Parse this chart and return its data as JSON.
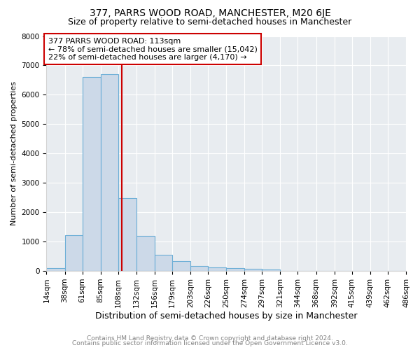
{
  "title1": "377, PARRS WOOD ROAD, MANCHESTER, M20 6JE",
  "title2": "Size of property relative to semi-detached houses in Manchester",
  "xlabel": "Distribution of semi-detached houses by size in Manchester",
  "ylabel": "Number of semi-detached properties",
  "bin_edges": [
    14,
    38,
    61,
    85,
    108,
    132,
    156,
    179,
    203,
    226,
    250,
    274,
    297,
    321,
    344,
    368,
    392,
    415,
    439,
    462,
    486
  ],
  "bar_heights": [
    100,
    1220,
    6600,
    6700,
    2480,
    1200,
    540,
    330,
    175,
    120,
    95,
    70,
    50,
    0,
    0,
    0,
    0,
    0,
    0,
    0
  ],
  "property_size": 113,
  "bar_color": "#ccd9e8",
  "bar_edge_color": "#6baed6",
  "vline_color": "#cc0000",
  "annotation_line1": "377 PARRS WOOD ROAD: 113sqm",
  "annotation_line2": "← 78% of semi-detached houses are smaller (15,042)",
  "annotation_line3": "22% of semi-detached houses are larger (4,170) →",
  "annotation_bbox_edgecolor": "#cc0000",
  "annotation_bbox_facecolor": "white",
  "ylim": [
    0,
    8000
  ],
  "bg_color": "#e8ecf0",
  "footer1": "Contains HM Land Registry data © Crown copyright and database right 2024.",
  "footer2": "Contains public sector information licensed under the Open Government Licence v3.0.",
  "title1_fontsize": 10,
  "title2_fontsize": 9,
  "xlabel_fontsize": 9,
  "ylabel_fontsize": 8,
  "tick_fontsize": 7.5,
  "annotation_fontsize": 8,
  "footer_fontsize": 6.5
}
